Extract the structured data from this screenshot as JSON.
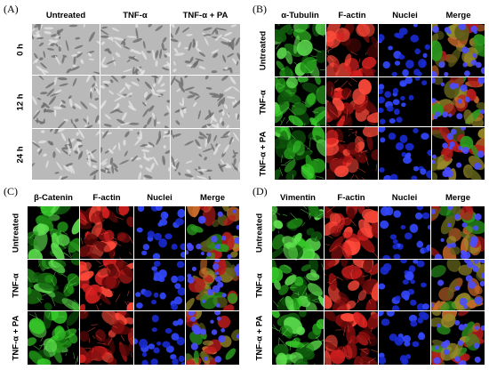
{
  "panels": [
    {
      "label": "(A)",
      "columns": [
        "Untreated",
        "TNF-α",
        "TNF-α + PA"
      ],
      "rows": [
        "0 h",
        "12 h",
        "24 h"
      ],
      "channel_colors": [
        "#c9c9c9",
        "#c9c9c9",
        "#c9c9c9"
      ],
      "channel_types": [
        "phase",
        "phase",
        "phase"
      ]
    },
    {
      "label": "(B)",
      "columns": [
        "α-Tubulin",
        "F-actin",
        "Nuclei",
        "Merge"
      ],
      "rows": [
        "Untreated",
        "TNF-α",
        "TNF-α + PA"
      ],
      "channel_colors": [
        "#2fbf22",
        "#d41a1a",
        "#1c2ed6",
        "#8f6a3a"
      ],
      "channel_types": [
        "green",
        "red",
        "blue",
        "merge"
      ]
    },
    {
      "label": "(C)",
      "columns": [
        "β-Catenin",
        "F-actin",
        "Nuclei",
        "Merge"
      ],
      "rows": [
        "Untreated",
        "TNF-α",
        "TNF-α + PA"
      ],
      "channel_colors": [
        "#2fbf22",
        "#d41a1a",
        "#1c2ed6",
        "#8f6a3a"
      ],
      "channel_types": [
        "green",
        "red",
        "blue",
        "merge"
      ]
    },
    {
      "label": "(D)",
      "columns": [
        "Vimentin",
        "F-actin",
        "Nuclei",
        "Merge"
      ],
      "rows": [
        "Untreated",
        "TNF-α",
        "TNF-α + PA"
      ],
      "channel_colors": [
        "#2fbf22",
        "#d41a1a",
        "#1c2ed6",
        "#8f6a3a"
      ],
      "channel_types": [
        "green",
        "red",
        "blue",
        "merge"
      ]
    }
  ]
}
